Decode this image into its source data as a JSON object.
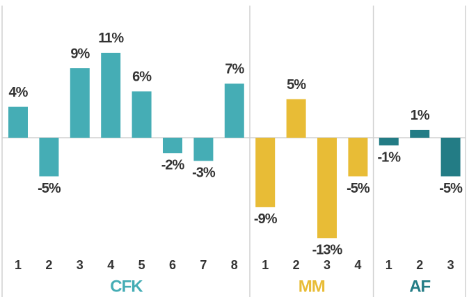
{
  "chart_data": {
    "type": "bar",
    "series": [
      {
        "name": "CFK",
        "color": "#45adb5",
        "categories": [
          "1",
          "2",
          "3",
          "4",
          "5",
          "6",
          "7",
          "8"
        ],
        "values": [
          4,
          -5,
          9,
          11,
          6,
          -2,
          -3,
          7
        ],
        "value_labels": [
          "4%",
          "-5%",
          "9%",
          "11%",
          "6%",
          "-2%",
          "-3%",
          "7%"
        ]
      },
      {
        "name": "MM",
        "color": "#e8bc36",
        "categories": [
          "1",
          "2",
          "3",
          "4"
        ],
        "values": [
          -9,
          5,
          -13,
          -5
        ],
        "value_labels": [
          "-9%",
          "5%",
          "-13%",
          "-5%"
        ]
      },
      {
        "name": "AF",
        "color": "#237c85",
        "categories": [
          "1",
          "2",
          "3"
        ],
        "values": [
          -1,
          1,
          -5
        ],
        "value_labels": [
          "-1%",
          "1%",
          "-5%"
        ]
      }
    ]
  }
}
